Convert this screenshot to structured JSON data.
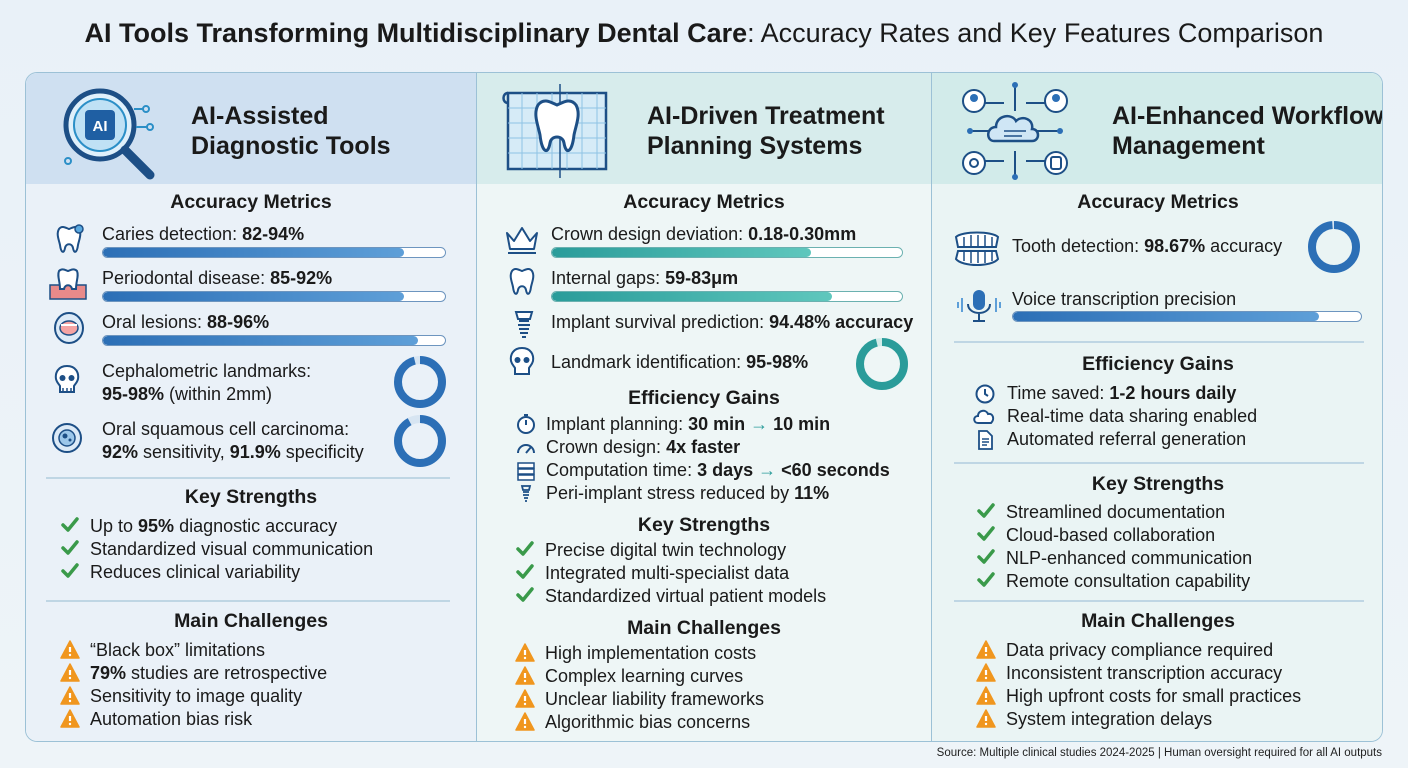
{
  "title": {
    "bold": "AI Tools Transforming Multidisciplinary Dental Care",
    "rest": ": Accuracy Rates and Key Features Comparison"
  },
  "columns": [
    {
      "heading": [
        "AI-Assisted",
        "Diagnostic Tools"
      ],
      "accuracy_title": "Accuracy Metrics",
      "metrics": [
        {
          "label": "Caries detection: ",
          "value": "82-94%",
          "fill": 0.88
        },
        {
          "label": "Periodontal disease: ",
          "value": "85-92%",
          "fill": 0.88
        },
        {
          "label": "Oral lesions: ",
          "value": "88-96%",
          "fill": 0.92
        }
      ],
      "donut_metrics": [
        {
          "line1": "Cephalometric landmarks:",
          "value": "95-98%",
          "line2": " (within 2mm)",
          "fill": 0.96
        },
        {
          "line1": "Oral squamous cell carcinoma:",
          "value": "92%",
          "line2_a": " sensitivity, ",
          "value2": "91.9%",
          "line2_b": " specificity",
          "fill": 0.92
        }
      ],
      "strengths_title": "Key Strengths",
      "strengths": [
        {
          "pre": "Up to ",
          "bold": "95%",
          "post": " diagnostic accuracy"
        },
        {
          "pre": "Standardized visual communication",
          "bold": "",
          "post": ""
        },
        {
          "pre": "Reduces clinical variability",
          "bold": "",
          "post": ""
        }
      ],
      "challenges_title": "Main Challenges",
      "challenges": [
        {
          "pre": "“Black box” limitations",
          "bold": "",
          "post": ""
        },
        {
          "pre": "",
          "bold": "79%",
          "post": " studies are retrospective"
        },
        {
          "pre": "Sensitivity to image quality",
          "bold": "",
          "post": ""
        },
        {
          "pre": "Automation bias risk",
          "bold": "",
          "post": ""
        }
      ]
    },
    {
      "heading": [
        "AI-Driven Treatment",
        "Planning Systems"
      ],
      "accuracy_title": "Accuracy Metrics",
      "metrics": [
        {
          "label": "Crown design deviation: ",
          "value": "0.18-0.30mm",
          "fill": 0.74
        },
        {
          "label": "Internal gaps: ",
          "value": "59-83μm",
          "fill": 0.8
        }
      ],
      "text_metrics": [
        {
          "label": "Implant survival prediction: ",
          "value": "94.48% accuracy"
        },
        {
          "label": "Landmark identification: ",
          "value": "95-98%",
          "fill": 0.96
        }
      ],
      "efficiency_title": "Efficiency Gains",
      "efficiency": [
        {
          "pre": "Implant planning: ",
          "a": "30 min",
          "arrow": "→",
          "b": "10 min"
        },
        {
          "pre": "Crown design: ",
          "a": "4x faster",
          "arrow": "",
          "b": ""
        },
        {
          "pre": "Computation time: ",
          "a": "3 days",
          "arrow": "→",
          "b": "<60 seconds"
        },
        {
          "pre": "Peri-implant stress reduced by ",
          "a": "11%",
          "arrow": "",
          "b": ""
        }
      ],
      "strengths_title": "Key Strengths",
      "strengths": [
        "Precise digital twin technology",
        "Integrated multi-specialist data",
        "Standardized virtual patient models"
      ],
      "challenges_title": "Main Challenges",
      "challenges": [
        "High implementation costs",
        "Complex learning curves",
        "Unclear liability frameworks",
        "Algorithmic bias concerns"
      ]
    },
    {
      "heading": [
        "AI-Enhanced Workflow",
        "Management"
      ],
      "accuracy_title": "Accuracy Metrics",
      "tooth_detection": {
        "label": "Tooth detection: ",
        "value": "98.67%",
        "post": " accuracy",
        "fill": 0.9867
      },
      "voice": {
        "label": "Voice transcription precision",
        "fill": 0.88
      },
      "efficiency_title": "Efficiency Gains",
      "efficiency": [
        {
          "pre": "Time saved: ",
          "bold": "1-2 hours daily"
        },
        {
          "pre": "Real-time data sharing enabled",
          "bold": ""
        },
        {
          "pre": "Automated referral generation",
          "bold": ""
        }
      ],
      "strengths_title": "Key Strengths",
      "strengths": [
        "Streamlined documentation",
        "Cloud-based collaboration",
        "NLP-enhanced communication",
        "Remote consultation capability"
      ],
      "challenges_title": "Main Challenges",
      "challenges": [
        "Data privacy compliance required",
        "Inconsistent transcription accuracy",
        "High upfront costs for small practices",
        "System integration delays"
      ]
    }
  ],
  "footer": "Source: Multiple clinical studies 2024-2025 | Human oversight required for all AI outputs",
  "colors": {
    "blue": "#2c6fb6",
    "teal": "#2a9c9a",
    "check": "#3a9a4a",
    "warn": "#f0961e"
  },
  "icons": [
    "ai-magnifier-icon",
    "tooth-blueprint-icon",
    "cloud-network-icon",
    "tooth-icon",
    "gum-icon",
    "mouth-icon",
    "skull-icon",
    "cell-icon",
    "crown-icon",
    "implant-icon",
    "stopwatch-icon",
    "gauge-icon",
    "server-icon",
    "clock-icon",
    "cloud-icon",
    "document-icon",
    "dentures-icon",
    "microphone-icon",
    "check-icon",
    "warning-icon"
  ]
}
